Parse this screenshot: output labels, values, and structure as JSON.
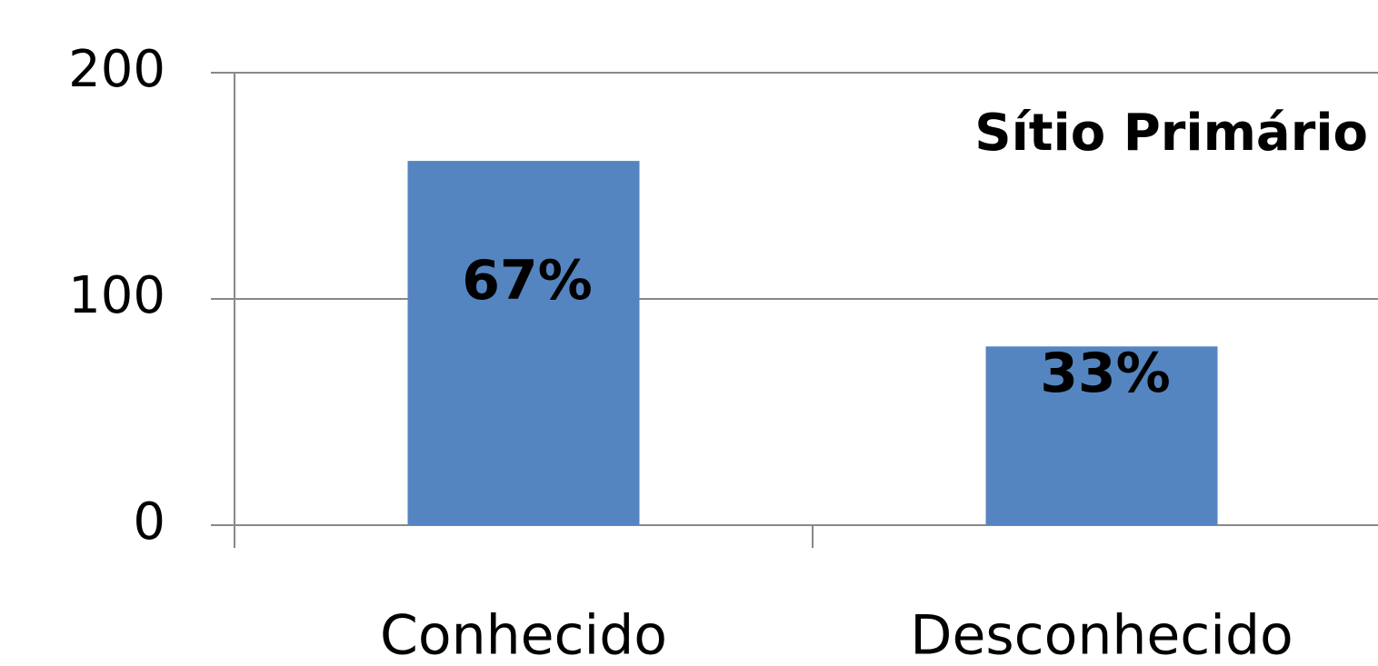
{
  "chart_data": {
    "type": "bar",
    "title": "Sítio Primário",
    "categories": [
      "Conhecido",
      "Desconhecido"
    ],
    "values": [
      161,
      79
    ],
    "color": "#5585c0",
    "annotations": [
      "67%",
      "33%"
    ],
    "ylim": [
      0,
      200
    ],
    "yticks": [
      0,
      100,
      200
    ],
    "grid": true
  }
}
